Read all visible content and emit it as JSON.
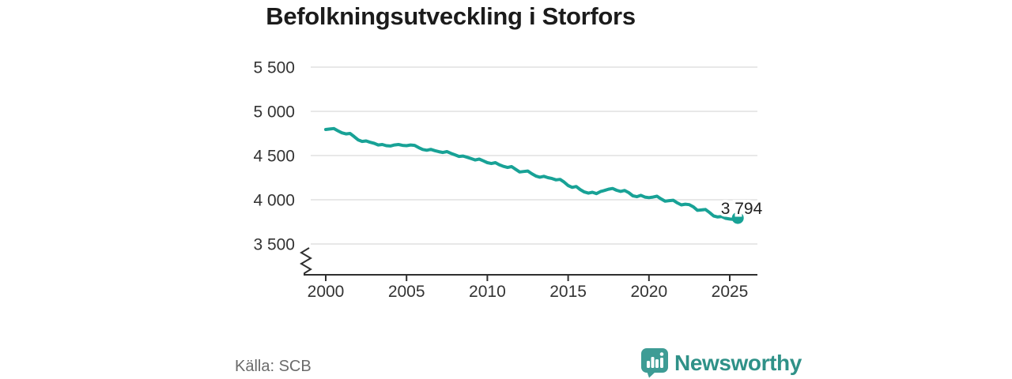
{
  "source_label": "Källa: SCB",
  "brand": {
    "name": "Newsworthy",
    "wordmark_color": "#2F9188",
    "icon_color": "#3E9C95",
    "icon": "newsworthy-speech-bubble-bar-chart-icon"
  },
  "chart_data": {
    "type": "line",
    "title": "Befolkningsutveckling i Storfors",
    "series_name": "Befolkning",
    "line_color": "#18A296",
    "grid_color": "#DBDBDB",
    "axis_color": "#2F2F2F",
    "axis_text_color": "#333333",
    "value_label_color": "#1F1F1F",
    "grid": true,
    "legend": "none",
    "axis_break": true,
    "xlim": [
      1998.6,
      2026.7
    ],
    "ylim_visible": [
      3500,
      5500
    ],
    "x_ticks": [
      2000,
      2005,
      2010,
      2015,
      2020,
      2025
    ],
    "x_tick_labels": [
      "2000",
      "2005",
      "2010",
      "2015",
      "2020",
      "2025"
    ],
    "y_ticks": [
      5500,
      5000,
      4500,
      4000,
      3500
    ],
    "y_tick_labels": [
      "5 500",
      "5 000",
      "4 500",
      "4 000",
      "3 500"
    ],
    "last_point": {
      "x": 2025.5,
      "value": 3794,
      "label": "3 794"
    },
    "points": [
      [
        2000.0,
        4795
      ],
      [
        2000.25,
        4800
      ],
      [
        2000.5,
        4805
      ],
      [
        2000.75,
        4780
      ],
      [
        2001.0,
        4757
      ],
      [
        2001.25,
        4745
      ],
      [
        2001.5,
        4750
      ],
      [
        2001.75,
        4715
      ],
      [
        2002.0,
        4678
      ],
      [
        2002.25,
        4660
      ],
      [
        2002.5,
        4665
      ],
      [
        2002.75,
        4650
      ],
      [
        2003.0,
        4638
      ],
      [
        2003.25,
        4620
      ],
      [
        2003.5,
        4625
      ],
      [
        2003.75,
        4612
      ],
      [
        2004.0,
        4608
      ],
      [
        2004.25,
        4620
      ],
      [
        2004.5,
        4625
      ],
      [
        2004.75,
        4615
      ],
      [
        2005.0,
        4612
      ],
      [
        2005.25,
        4620
      ],
      [
        2005.5,
        4615
      ],
      [
        2005.75,
        4590
      ],
      [
        2006.0,
        4569
      ],
      [
        2006.25,
        4560
      ],
      [
        2006.5,
        4570
      ],
      [
        2006.75,
        4555
      ],
      [
        2007.0,
        4544
      ],
      [
        2007.25,
        4535
      ],
      [
        2007.5,
        4545
      ],
      [
        2007.75,
        4525
      ],
      [
        2008.0,
        4508
      ],
      [
        2008.25,
        4490
      ],
      [
        2008.5,
        4495
      ],
      [
        2008.75,
        4480
      ],
      [
        2009.0,
        4465
      ],
      [
        2009.25,
        4450
      ],
      [
        2009.5,
        4460
      ],
      [
        2009.75,
        4440
      ],
      [
        2010.0,
        4420
      ],
      [
        2010.25,
        4410
      ],
      [
        2010.5,
        4420
      ],
      [
        2010.75,
        4395
      ],
      [
        2011.0,
        4378
      ],
      [
        2011.25,
        4365
      ],
      [
        2011.5,
        4375
      ],
      [
        2011.75,
        4345
      ],
      [
        2012.0,
        4314
      ],
      [
        2012.25,
        4320
      ],
      [
        2012.5,
        4325
      ],
      [
        2012.75,
        4295
      ],
      [
        2013.0,
        4269
      ],
      [
        2013.25,
        4255
      ],
      [
        2013.5,
        4265
      ],
      [
        2013.75,
        4250
      ],
      [
        2014.0,
        4240
      ],
      [
        2014.25,
        4225
      ],
      [
        2014.5,
        4230
      ],
      [
        2014.75,
        4200
      ],
      [
        2015.0,
        4161
      ],
      [
        2015.25,
        4140
      ],
      [
        2015.5,
        4150
      ],
      [
        2015.75,
        4115
      ],
      [
        2016.0,
        4088
      ],
      [
        2016.25,
        4075
      ],
      [
        2016.5,
        4085
      ],
      [
        2016.75,
        4070
      ],
      [
        2017.0,
        4093
      ],
      [
        2017.25,
        4105
      ],
      [
        2017.5,
        4120
      ],
      [
        2017.75,
        4128
      ],
      [
        2018.0,
        4107
      ],
      [
        2018.25,
        4095
      ],
      [
        2018.5,
        4105
      ],
      [
        2018.75,
        4080
      ],
      [
        2019.0,
        4045
      ],
      [
        2019.25,
        4035
      ],
      [
        2019.5,
        4050
      ],
      [
        2019.75,
        4030
      ],
      [
        2020.0,
        4024
      ],
      [
        2020.25,
        4030
      ],
      [
        2020.5,
        4040
      ],
      [
        2020.75,
        4010
      ],
      [
        2021.0,
        3984
      ],
      [
        2021.25,
        3990
      ],
      [
        2021.5,
        3995
      ],
      [
        2021.75,
        3965
      ],
      [
        2022.0,
        3942
      ],
      [
        2022.25,
        3950
      ],
      [
        2022.5,
        3945
      ],
      [
        2022.75,
        3920
      ],
      [
        2023.0,
        3880
      ],
      [
        2023.25,
        3885
      ],
      [
        2023.5,
        3890
      ],
      [
        2023.75,
        3855
      ],
      [
        2024.0,
        3817
      ],
      [
        2024.25,
        3805
      ],
      [
        2024.5,
        3810
      ],
      [
        2024.75,
        3790
      ],
      [
        2025.0,
        3782
      ],
      [
        2025.25,
        3778
      ],
      [
        2025.5,
        3794
      ]
    ]
  }
}
